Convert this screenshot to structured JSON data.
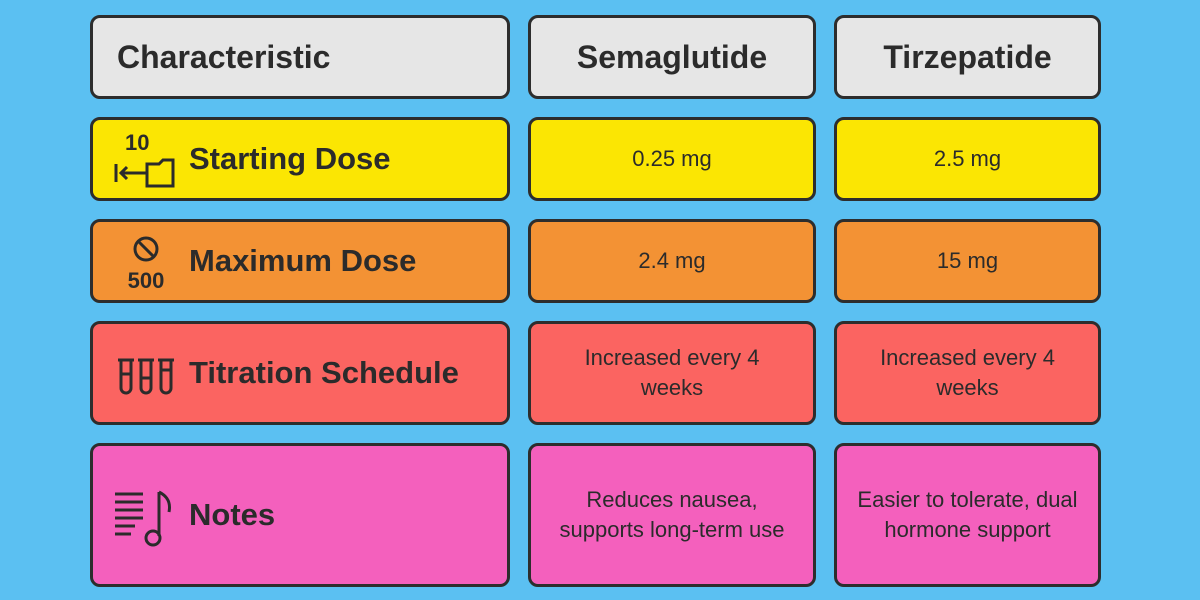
{
  "header": {
    "col1": "Characteristic",
    "col2": "Semaglutide",
    "col3": "Tirzepatide"
  },
  "rows": [
    {
      "label": "Starting Dose",
      "icon": "starting-dose-icon",
      "icon_text": "10",
      "color": "#fbe603",
      "semaglutide": "0.25 mg",
      "tirzepatide": "2.5 mg"
    },
    {
      "label": "Maximum Dose",
      "icon": "maximum-dose-icon",
      "icon_text": "500",
      "color": "#f39234",
      "semaglutide": "2.4 mg",
      "tirzepatide": "15 mg"
    },
    {
      "label": "Titration Schedule",
      "icon": "test-tubes-icon",
      "color": "#fb6461",
      "semaglutide": "Increased every 4 weeks",
      "tirzepatide": "Increased every 4 weeks"
    },
    {
      "label": "Notes",
      "icon": "notes-icon",
      "color": "#f460bd",
      "semaglutide": "Reduces nausea, supports long-term use",
      "tirzepatide": "Easier to tolerate, dual hormone support"
    }
  ]
}
